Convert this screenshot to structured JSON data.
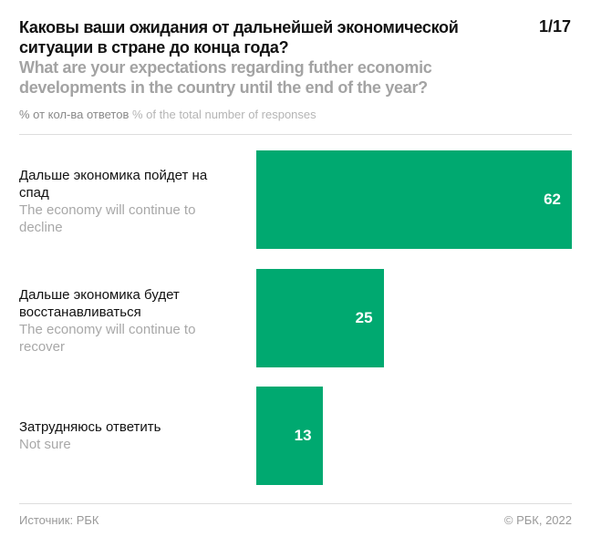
{
  "header": {
    "title": "Каковы ваши ожидания от дальнейшей экономической ситуации в стране до конца года?",
    "subtitle": "What are your expectations regarding futher economic developments in the country until the end of the year?",
    "page": "1/17",
    "units_ru": "% от кол-ва ответов",
    "units_en": "% of the total number of responses"
  },
  "chart_data": {
    "type": "bar",
    "orientation": "horizontal",
    "categories": [
      {
        "ru": "Дальше экономика пойдет на спад",
        "en": "The economy will continue to decline"
      },
      {
        "ru": "Дальше экономика будет восстанавливаться",
        "en": "The economy will continue to recover"
      },
      {
        "ru": "Затрудняюсь ответить",
        "en": "Not sure"
      }
    ],
    "values": [
      62,
      25,
      13
    ],
    "value_labels": [
      "62",
      "25",
      "13"
    ],
    "color": "#00a970",
    "grid": false
  },
  "footer": {
    "source": "Источник: РБК",
    "copyright": "© РБК, 2022"
  }
}
